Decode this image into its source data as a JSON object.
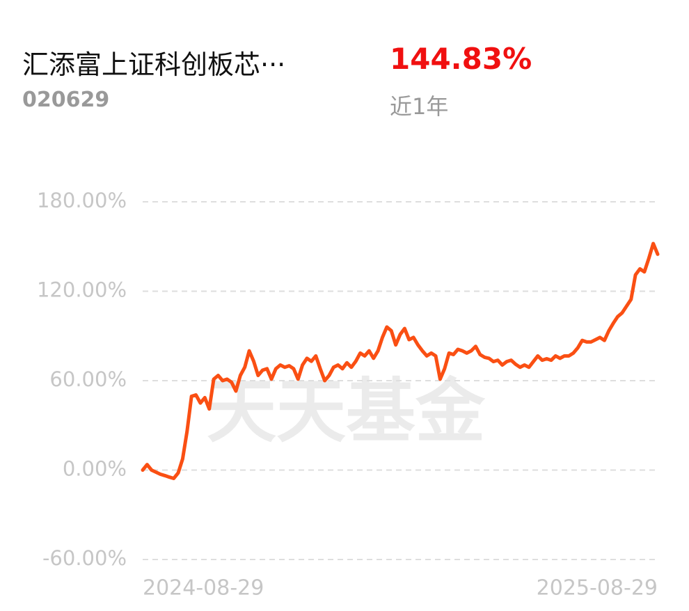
{
  "header": {
    "title": "汇添富上证科创板芯···",
    "code": "020629",
    "return": "144.83%",
    "period": "近1年"
  },
  "watermark": "天天基金",
  "chart_data": {
    "type": "line",
    "categories": [
      "2024-08-29",
      null,
      null,
      null,
      null,
      null,
      null,
      null,
      null,
      null,
      null,
      null,
      null,
      null,
      null,
      null,
      null,
      null,
      null,
      null,
      null,
      null,
      null,
      null,
      null,
      null,
      null,
      null,
      null,
      null,
      null,
      null,
      null,
      null,
      null,
      null,
      null,
      null,
      null,
      null,
      null,
      null,
      null,
      null,
      null,
      null,
      null,
      null,
      null,
      null,
      null,
      null,
      null,
      null,
      null,
      null,
      null,
      null,
      null,
      null,
      null,
      null,
      null,
      null,
      null,
      null,
      null,
      null,
      null,
      null,
      null,
      null,
      null,
      null,
      null,
      null,
      null,
      null,
      null,
      null,
      null,
      null,
      null,
      null,
      null,
      null,
      null,
      null,
      null,
      null,
      null,
      null,
      null,
      null,
      null,
      null,
      null,
      null,
      null,
      null,
      null,
      null,
      null,
      null,
      null,
      null,
      null,
      null,
      null,
      null,
      null,
      null,
      null,
      null,
      null,
      null,
      "2025-08-29"
    ],
    "series": [
      {
        "color": "#fa4f13",
        "values": [
          0,
          3.7,
          0,
          -1.4,
          -2.8,
          -3.7,
          -4.7,
          -5.6,
          -1.9,
          7.5,
          26,
          49.5,
          50.4,
          45,
          48.6,
          41,
          61,
          63.5,
          60,
          61,
          59,
          53,
          63.5,
          69,
          80,
          73,
          63.5,
          67,
          68,
          61,
          68,
          70.5,
          69,
          70,
          68,
          61,
          70.5,
          75,
          73,
          76.6,
          68,
          60,
          63.5,
          69,
          70.5,
          68,
          72,
          69,
          73,
          78.5,
          76.6,
          80,
          75,
          80,
          89,
          96,
          93.5,
          84,
          91,
          95,
          87.5,
          89,
          84,
          80,
          76.6,
          78.5,
          76.6,
          61,
          68,
          78.5,
          77.5,
          81,
          80,
          78.5,
          80,
          83,
          77.5,
          75.7,
          75,
          72.8,
          73.7,
          70.5,
          72.8,
          73.7,
          71,
          69,
          70.5,
          69,
          72.8,
          76.6,
          73.7,
          74.7,
          73.7,
          76.6,
          75,
          76.6,
          76.6,
          78.5,
          82,
          87,
          86,
          86,
          87.5,
          89,
          87,
          93.5,
          98.5,
          103,
          105.5,
          110,
          114.5,
          131,
          135,
          133,
          142,
          152,
          144.83
        ]
      }
    ],
    "ylim": [
      -60,
      180
    ],
    "yticks": [
      {
        "value": -60,
        "label": "-60.00%"
      },
      {
        "value": 0,
        "label": "0.00%"
      },
      {
        "value": 60,
        "label": "60.00%"
      },
      {
        "value": 120,
        "label": "120.00%"
      },
      {
        "value": 180,
        "label": "180.00%"
      }
    ],
    "grid": true
  }
}
